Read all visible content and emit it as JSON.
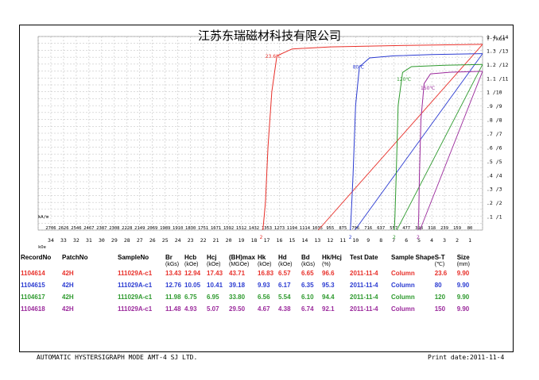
{
  "company": "江苏东瑞磁材科技有限公司",
  "footer": {
    "left": "AUTOMATIC  HYSTERSIGRAPH  MODE  AMT-4     SJ  LTD.",
    "right": "Print date:2011-11-4"
  },
  "chart_data": {
    "type": "line",
    "title": "江苏东瑞磁材科技有限公司",
    "y_unit": "T /kGs",
    "x_unit_top": "kA/m",
    "x_unit_bottom": "kOe",
    "xlim_koe": [
      35,
      0
    ],
    "ylim_kgs": [
      0,
      14
    ],
    "grid": true,
    "y_ticks": [
      ".1 /1",
      ".2 /2",
      ".3 /3",
      ".4 /4",
      ".5 /5",
      ".6 /6",
      ".7 /7",
      ".8 /8",
      ".9 /9",
      "1 /10",
      "1.1 /11",
      "1.2 /12",
      "1.3 /13",
      "1.4 /14"
    ],
    "x_ticks_kam": [
      "2706",
      "2626",
      "2546",
      "2467",
      "2387",
      "2308",
      "2228",
      "2149",
      "2069",
      "1989",
      "1910",
      "1830",
      "1751",
      "1671",
      "1592",
      "1512",
      "1432",
      "1353",
      "1273",
      "1194",
      "1114",
      "1035",
      "955",
      "875",
      "796",
      "716",
      "637",
      "557",
      "477",
      "398",
      "318",
      "239",
      "159",
      "80"
    ],
    "x_ticks_koe": [
      "34",
      "33",
      "32",
      "31",
      "30",
      "29",
      "28",
      "27",
      "26",
      "25",
      "24",
      "23",
      "22",
      "21",
      "20",
      "19",
      "18",
      "17",
      "16",
      "15",
      "14",
      "13",
      "12",
      "11",
      "10",
      "9",
      "8",
      "7",
      "6",
      "5",
      "4",
      "3",
      "2",
      "1"
    ],
    "series": [
      {
        "name": "23.6℃",
        "color": "#e8302a",
        "Br": 13.43,
        "Hcb": 12.94,
        "Hcj": 17.43,
        "Hk": 16.83,
        "Jpoints": [
          [
            0,
            13.43
          ],
          [
            6,
            13.36
          ],
          [
            12,
            13.25
          ],
          [
            15,
            13.1
          ],
          [
            16.2,
            12.6
          ],
          [
            16.6,
            10.0
          ],
          [
            16.9,
            6.0
          ],
          [
            17.1,
            2.0
          ],
          [
            17.3,
            0
          ]
        ],
        "Bline": [
          [
            0,
            13.43
          ],
          [
            12.94,
            0
          ]
        ]
      },
      {
        "name": "80℃",
        "color": "#2b3bd1",
        "Br": 12.76,
        "Hcb": 10.05,
        "Hcj": 10.41,
        "Hk": 9.93,
        "Jpoints": [
          [
            0,
            12.76
          ],
          [
            4,
            12.69
          ],
          [
            7,
            12.6
          ],
          [
            8.9,
            12.45
          ],
          [
            9.7,
            11.8
          ],
          [
            10.0,
            9.0
          ],
          [
            10.2,
            4.0
          ],
          [
            10.35,
            1.0
          ],
          [
            10.41,
            0
          ]
        ],
        "Bline": [
          [
            0,
            12.76
          ],
          [
            10.05,
            0
          ]
        ]
      },
      {
        "name": "120℃",
        "color": "#2e9a2e",
        "Br": 11.98,
        "Hcb": 6.75,
        "Hcj": 6.95,
        "Hk": 6.56,
        "Jpoints": [
          [
            0,
            11.98
          ],
          [
            3,
            11.92
          ],
          [
            5.6,
            11.82
          ],
          [
            6.3,
            11.4
          ],
          [
            6.65,
            9.0
          ],
          [
            6.8,
            4.0
          ],
          [
            6.9,
            1.0
          ],
          [
            6.95,
            0
          ]
        ],
        "Bline": [
          [
            0,
            11.98
          ],
          [
            6.75,
            0
          ]
        ]
      },
      {
        "name": "150℃",
        "color": "#9b2a9c",
        "Br": 11.48,
        "Hcb": 4.93,
        "Hcj": 5.07,
        "Hk": 4.67,
        "Jpoints": [
          [
            0,
            11.48
          ],
          [
            2.5,
            11.42
          ],
          [
            4.1,
            11.3
          ],
          [
            4.6,
            10.6
          ],
          [
            4.85,
            8.0
          ],
          [
            4.97,
            4.0
          ],
          [
            5.03,
            1.0
          ],
          [
            5.07,
            0
          ]
        ],
        "Bline": [
          [
            0,
            11.48
          ],
          [
            4.93,
            0
          ]
        ]
      }
    ]
  },
  "table": {
    "headers": [
      "RecordNo",
      "PatchNo",
      "SampleNo",
      "Br",
      "Hcb",
      "Hcj",
      "(BH)max",
      "Hk",
      "Hd",
      "Bd",
      "Hk/Hcj",
      "Test Date",
      "Sample Shape",
      "S-T",
      "Size"
    ],
    "units": [
      "",
      "",
      "",
      "(kGs)",
      "(kOe)",
      "(kOe)",
      "(MGOe)",
      "(kOe)",
      "(kOe)",
      "(kGs)",
      "(%)",
      "",
      "",
      "(℃)",
      "(mm)"
    ],
    "rows": [
      {
        "color": "#e8302a",
        "cells": [
          "1104614",
          "42H",
          "111029A-c1",
          "13.43",
          "12.94",
          "17.43",
          "43.71",
          "16.83",
          "6.57",
          "6.65",
          "96.6",
          "2011-11-4",
          "Column",
          "23.6",
          "9.90"
        ]
      },
      {
        "color": "#2b3bd1",
        "cells": [
          "1104615",
          "42H",
          "111029A-c1",
          "12.76",
          "10.05",
          "10.41",
          "39.18",
          "9.93",
          "6.17",
          "6.35",
          "95.3",
          "2011-11-4",
          "Column",
          "80",
          "9.90"
        ]
      },
      {
        "color": "#2e9a2e",
        "cells": [
          "1104617",
          "42H",
          "111029A-c1",
          "11.98",
          "6.75",
          "6.95",
          "33.80",
          "6.56",
          "5.54",
          "6.10",
          "94.4",
          "2011-11-4",
          "Column",
          "120",
          "9.90"
        ]
      },
      {
        "color": "#9b2a9c",
        "cells": [
          "1104618",
          "42H",
          "111029A-c1",
          "11.48",
          "4.93",
          "5.07",
          "29.50",
          "4.67",
          "4.38",
          "6.74",
          "92.1",
          "2011-11-4",
          "Column",
          "150",
          "9.90"
        ]
      }
    ]
  }
}
